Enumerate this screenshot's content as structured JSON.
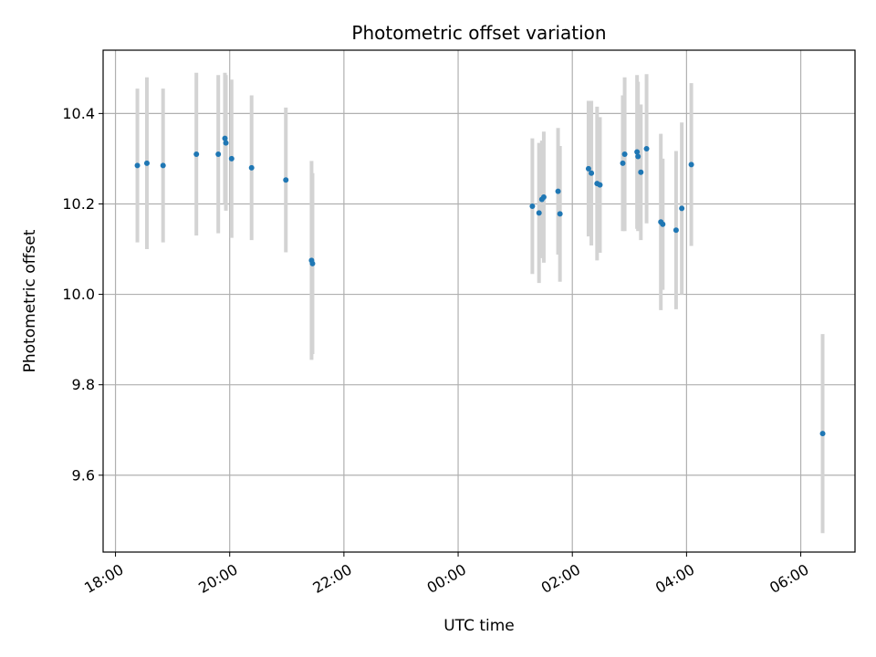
{
  "chart_data": {
    "type": "scatter",
    "title": "Photometric offset variation",
    "xlabel": "UTC time",
    "ylabel": "Photometric offset",
    "x_unit": "hours (UTC), ticks every 2 h; 24+ means after midnight",
    "xlim": [
      "17:47",
      "06:57"
    ],
    "ylim": [
      9.43,
      10.54
    ],
    "x_ticks": [
      "18:00",
      "20:00",
      "22:00",
      "00:00",
      "02:00",
      "04:00",
      "06:00"
    ],
    "y_ticks": [
      "9.6",
      "9.8",
      "10.0",
      "10.2",
      "10.4"
    ],
    "grid": true,
    "marker_color": "#1f77b4",
    "errorbar_color": "#d3d3d3",
    "points": [
      {
        "t": "18:23",
        "y": 10.285,
        "err": 0.17
      },
      {
        "t": "18:33",
        "y": 10.29,
        "err": 0.19
      },
      {
        "t": "18:50",
        "y": 10.285,
        "err": 0.17
      },
      {
        "t": "19:25",
        "y": 10.31,
        "err": 0.18
      },
      {
        "t": "19:48",
        "y": 10.31,
        "err": 0.175
      },
      {
        "t": "19:55",
        "y": 10.345,
        "err": 0.145
      },
      {
        "t": "19:56",
        "y": 10.335,
        "err": 0.15
      },
      {
        "t": "20:02",
        "y": 10.3,
        "err": 0.175
      },
      {
        "t": "20:23",
        "y": 10.28,
        "err": 0.16
      },
      {
        "t": "20:59",
        "y": 10.253,
        "err": 0.16
      },
      {
        "t": "21:26",
        "y": 10.075,
        "err": 0.22
      },
      {
        "t": "21:27",
        "y": 10.068,
        "err": 0.2
      },
      {
        "t": "01:18",
        "y": 10.195,
        "err": 0.15
      },
      {
        "t": "01:25",
        "y": 10.18,
        "err": 0.155
      },
      {
        "t": "01:28",
        "y": 10.21,
        "err": 0.13
      },
      {
        "t": "01:30",
        "y": 10.215,
        "err": 0.145
      },
      {
        "t": "01:45",
        "y": 10.228,
        "err": 0.14
      },
      {
        "t": "01:47",
        "y": 10.178,
        "err": 0.15
      },
      {
        "t": "02:17",
        "y": 10.278,
        "err": 0.15
      },
      {
        "t": "02:20",
        "y": 10.268,
        "err": 0.16
      },
      {
        "t": "02:26",
        "y": 10.245,
        "err": 0.17
      },
      {
        "t": "02:29",
        "y": 10.242,
        "err": 0.15
      },
      {
        "t": "02:53",
        "y": 10.29,
        "err": 0.15
      },
      {
        "t": "02:55",
        "y": 10.31,
        "err": 0.17
      },
      {
        "t": "03:08",
        "y": 10.315,
        "err": 0.17
      },
      {
        "t": "03:09",
        "y": 10.305,
        "err": 0.165
      },
      {
        "t": "03:12",
        "y": 10.27,
        "err": 0.15
      },
      {
        "t": "03:18",
        "y": 10.322,
        "err": 0.165
      },
      {
        "t": "03:33",
        "y": 10.16,
        "err": 0.195
      },
      {
        "t": "03:35",
        "y": 10.155,
        "err": 0.145
      },
      {
        "t": "03:49",
        "y": 10.142,
        "err": 0.175
      },
      {
        "t": "03:55",
        "y": 10.19,
        "err": 0.19
      },
      {
        "t": "04:05",
        "y": 10.287,
        "err": 0.18
      },
      {
        "t": "06:23",
        "y": 9.692,
        "err": 0.22
      }
    ]
  }
}
